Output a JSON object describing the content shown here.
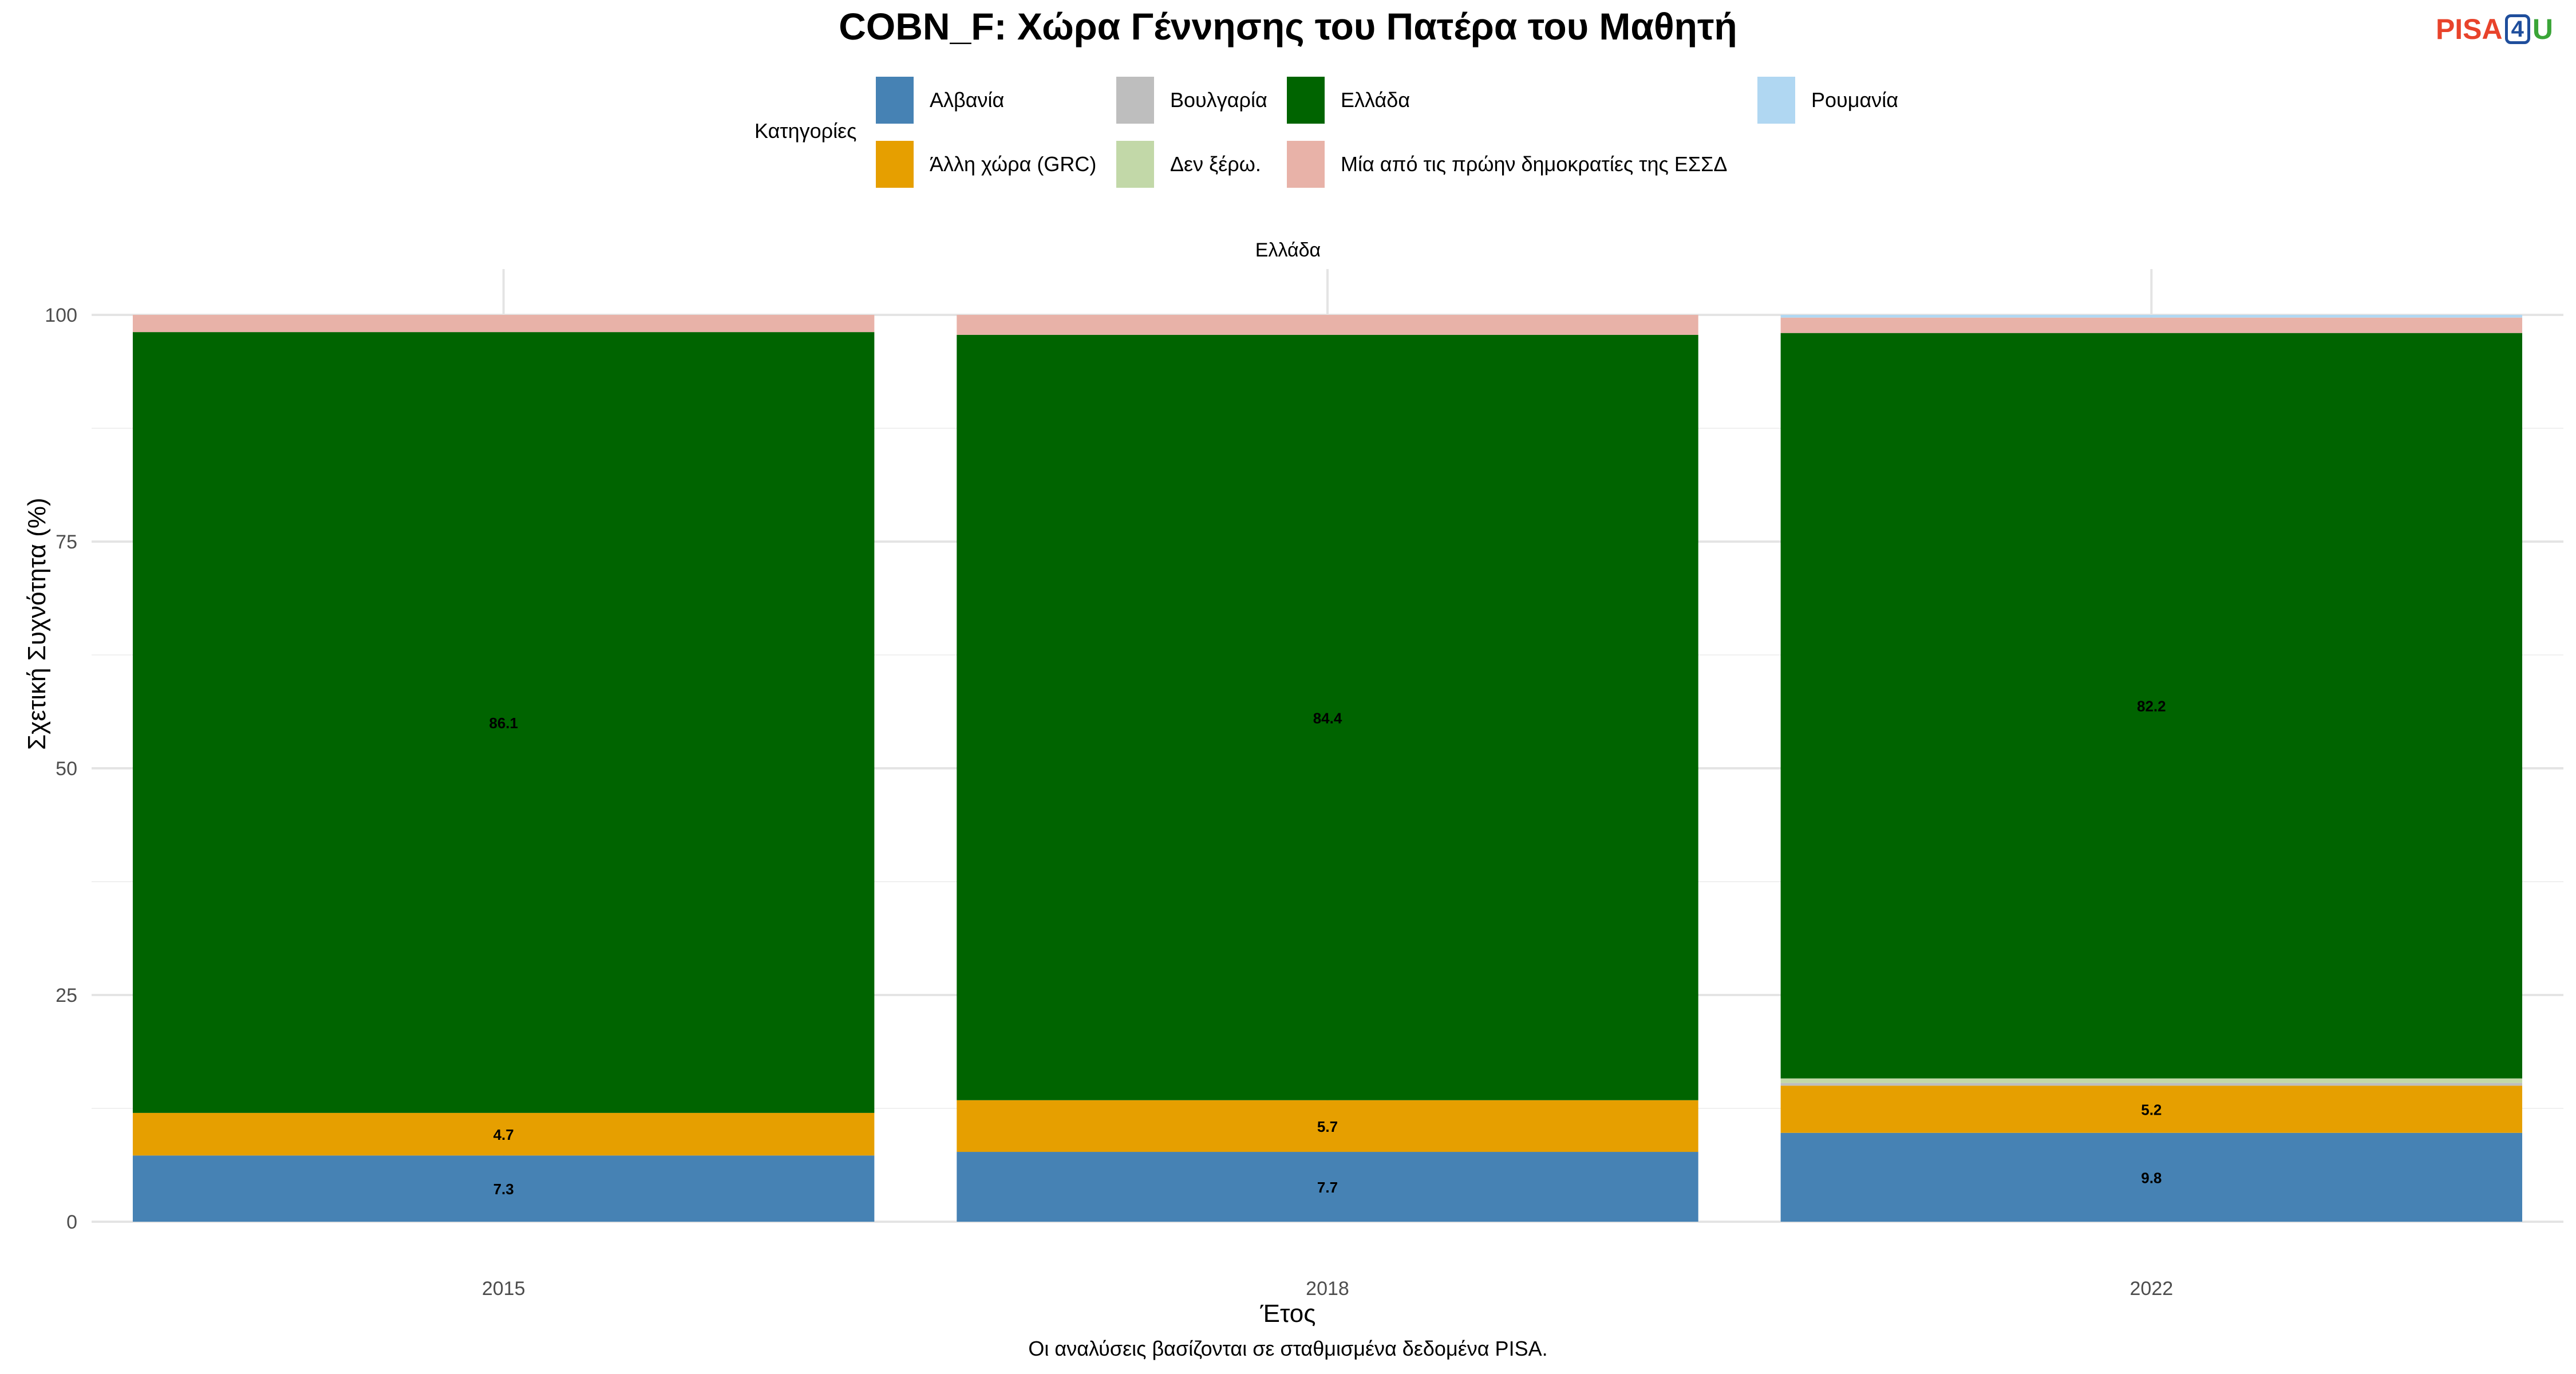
{
  "chart_data": {
    "type": "bar",
    "stacked": true,
    "title": "COBN_F: Χώρα Γέννησης του Πατέρα του Μαθητή",
    "facet": "Ελλάδα",
    "xlabel": "Έτος",
    "ylabel": "Σχετική Συχνότητα (%)",
    "caption": "Οι αναλύσεις βασίζονται σε σταθμισμένα δεδομένα PISA.",
    "legend_title": "Κατηγορίες",
    "legend_position": "top",
    "grid": true,
    "ylim": [
      0,
      100
    ],
    "yticks": [
      0,
      25,
      50,
      75,
      100
    ],
    "categories": [
      "2015",
      "2018",
      "2022"
    ],
    "series": [
      {
        "name": "Αλβανία",
        "color": "#4682b4",
        "values": [
          7.3,
          7.7,
          9.8
        ],
        "labels": [
          "7.3",
          "7.7",
          "9.8"
        ]
      },
      {
        "name": "Άλλη χώρα (GRC)",
        "color": "#e69f00",
        "values": [
          4.7,
          5.7,
          5.2
        ],
        "labels": [
          "4.7",
          "5.7",
          "5.2"
        ]
      },
      {
        "name": "Βουλγαρία",
        "color": "#bebebe",
        "values": [
          0,
          0,
          0.3
        ],
        "labels": [
          "",
          "",
          ""
        ]
      },
      {
        "name": "Δεν ξέρω.",
        "color": "#c2d8a8",
        "values": [
          0,
          0,
          0.5
        ],
        "labels": [
          "",
          "",
          ""
        ]
      },
      {
        "name": "Ελλάδα",
        "color": "#006400",
        "values": [
          86.1,
          84.4,
          82.2
        ],
        "labels": [
          "86.1",
          "84.4",
          "82.2"
        ]
      },
      {
        "name": "Μία από τις πρώην δημοκρατίες της ΕΣΣΔ",
        "color": "#e8b2a8",
        "values": [
          1.9,
          2.2,
          1.7
        ],
        "labels": [
          "",
          "",
          ""
        ]
      },
      {
        "name": "Ρουμανία",
        "color": "#b0d7f2",
        "values": [
          0,
          0,
          0.3
        ],
        "labels": [
          "",
          "",
          ""
        ]
      }
    ]
  },
  "logo": {
    "part1": "PISA",
    "part2": "4",
    "part3": "U"
  }
}
